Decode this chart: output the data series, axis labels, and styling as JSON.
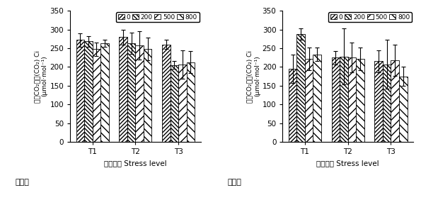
{
  "left": {
    "title": "黑麦草",
    "xlabel": "胁迫强度 Stress level",
    "ylabel1": "胞间CO₂浓度(CO₂) Ci",
    "ylabel2": "(μmol·mol⁻¹)",
    "categories": [
      "T1",
      "T2",
      "T3"
    ],
    "series_labels": [
      "0",
      "200",
      "500",
      "800"
    ],
    "values": [
      [
        272,
        280,
        260
      ],
      [
        268,
        263,
        205
      ],
      [
        248,
        258,
        207
      ],
      [
        263,
        248,
        213
      ]
    ],
    "errors": [
      [
        18,
        20,
        12
      ],
      [
        15,
        28,
        10
      ],
      [
        18,
        38,
        38
      ],
      [
        10,
        30,
        30
      ]
    ],
    "ylim": [
      0,
      350
    ],
    "yticks": [
      0,
      50,
      100,
      150,
      200,
      250,
      300,
      350
    ]
  },
  "right": {
    "title": "高羊茅",
    "xlabel": "胁迫强度 Stress level",
    "ylabel1": "胞间CO₂浓度(CO₂) Ci",
    "ylabel2": "(μmol·mol⁻¹)",
    "categories": [
      "T1",
      "T2",
      "T3"
    ],
    "series_labels": [
      "0",
      "200",
      "500",
      "800"
    ],
    "values": [
      [
        195,
        225,
        215
      ],
      [
        288,
        228,
        207
      ],
      [
        222,
        225,
        218
      ],
      [
        233,
        222,
        175
      ]
    ],
    "errors": [
      [
        38,
        18,
        30
      ],
      [
        15,
        75,
        65
      ],
      [
        30,
        40,
        42
      ],
      [
        18,
        30,
        25
      ]
    ],
    "ylim": [
      0,
      350
    ],
    "yticks": [
      0,
      50,
      100,
      150,
      200,
      250,
      300,
      350
    ]
  },
  "hatch_patterns": [
    "////",
    "\\\\\\\\",
    "////",
    "\\\\\\\\"
  ],
  "hatch_densities": [
    6,
    6,
    3,
    3
  ],
  "bar_facecolor": "white",
  "bar_edgecolor": "black"
}
